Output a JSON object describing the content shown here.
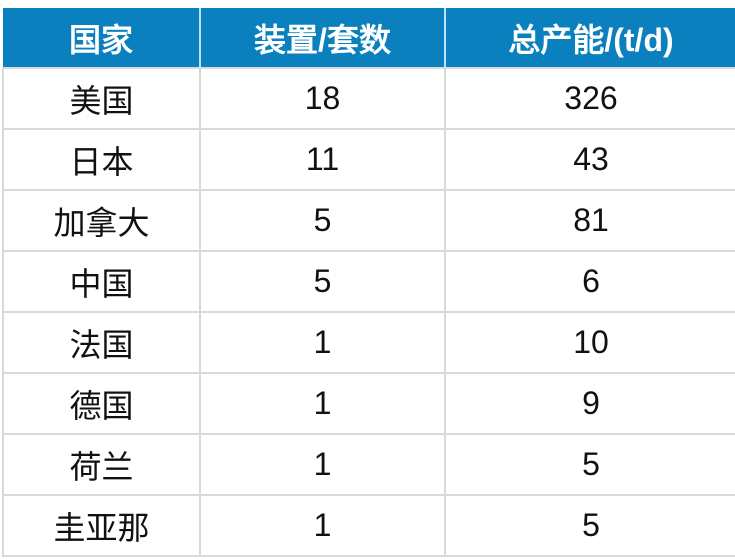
{
  "table": {
    "headers": [
      "国家",
      "装置/套数",
      "总产能/(t/d)"
    ],
    "rows": [
      [
        "美国",
        "18",
        "326"
      ],
      [
        "日本",
        "11",
        "43"
      ],
      [
        "加拿大",
        "5",
        "81"
      ],
      [
        "中国",
        "5",
        "6"
      ],
      [
        "法国",
        "1",
        "10"
      ],
      [
        "德国",
        "1",
        "9"
      ],
      [
        "荷兰",
        "1",
        "5"
      ],
      [
        "圭亚那",
        "1",
        "5"
      ]
    ]
  },
  "colors": {
    "header_bg": "#0b80bf",
    "header_text": "#ffffff",
    "grid": "#d9d9d9"
  }
}
